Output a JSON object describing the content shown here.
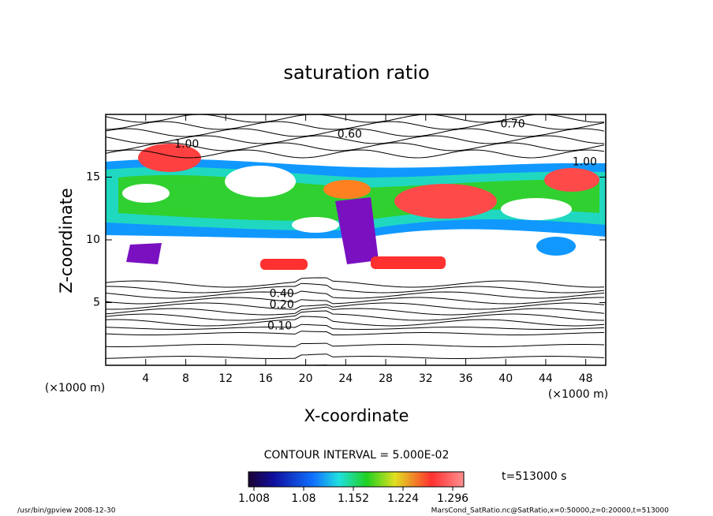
{
  "chart_data": {
    "type": "contour",
    "title": "saturation ratio",
    "x_label": "X-coordinate",
    "y_label": "Z-coordinate",
    "x_unit": "(×1000 m)",
    "y_unit": "(×1000 m)",
    "xlim": [
      0,
      50
    ],
    "xticks": [
      4,
      8,
      12,
      16,
      20,
      24,
      28,
      32,
      36,
      40,
      44,
      48
    ],
    "ylim": [
      0,
      20
    ],
    "yticks": [
      5,
      10,
      15
    ],
    "contour_interval": "CONTOUR INTERVAL = 5.000E-02",
    "contour_labels": [
      {
        "x": 24.4,
        "y": 18.4,
        "value": 0.6,
        "label": "0.60"
      },
      {
        "x": 40.7,
        "y": 19.2,
        "value": 0.7,
        "label": "0.70"
      },
      {
        "x": 8.1,
        "y": 17.6,
        "value": 1.0,
        "label": "1.00"
      },
      {
        "x": 47.9,
        "y": 16.2,
        "value": 1.0,
        "label": "1.00"
      },
      {
        "x": 17.6,
        "y": 5.7,
        "value": 0.4,
        "label": "0.40"
      },
      {
        "x": 17.6,
        "y": 4.8,
        "value": 0.2,
        "label": "0.20"
      },
      {
        "x": 17.4,
        "y": 3.1,
        "value": 0.1,
        "label": "0.10"
      }
    ],
    "colorbar": {
      "lim": [
        1.0,
        1.312
      ],
      "ticks": [
        1.008,
        1.08,
        1.152,
        1.224,
        1.296
      ]
    },
    "time": "t=513000 s",
    "footer_left": "/usr/bin/gpview  2008-12-30",
    "footer_right": "MarsCond_SatRatio.nc@SatRatio,x=0:50000,z=0:20000,t=513000"
  }
}
